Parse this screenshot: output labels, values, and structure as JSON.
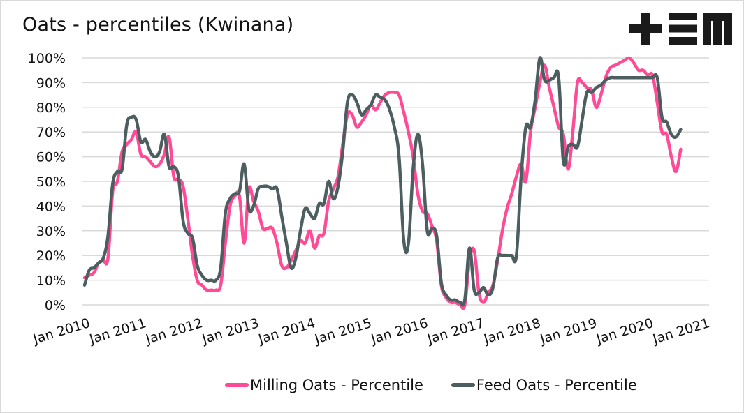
{
  "logo": {
    "name": "+EM logo",
    "color": "#1a1a1a"
  },
  "chart_data": {
    "type": "line",
    "title": "Oats - percentiles (Kwinana)",
    "xlabel": "",
    "ylabel": "",
    "ylim": [
      0,
      100
    ],
    "y_ticks": [
      "0%",
      "10%",
      "20%",
      "30%",
      "40%",
      "50%",
      "60%",
      "70%",
      "80%",
      "90%",
      "100%"
    ],
    "y_tick_values": [
      0,
      10,
      20,
      30,
      40,
      50,
      60,
      70,
      80,
      90,
      100
    ],
    "x_tick_labels": [
      "Jan 2010",
      "Jan 2011",
      "Jan 2012",
      "Jan 2013",
      "Jan 2014",
      "Jan 2015",
      "Jan 2016",
      "Jan 2017",
      "Jan 2018",
      "Jan 2019",
      "Jan 2020",
      "Jan 2021"
    ],
    "x_start": "Jan 2010",
    "x_frequency": "monthly",
    "grid": true,
    "legend_position": "bottom",
    "series": [
      {
        "name": "Milling Oats - Percentile",
        "color": "#ff4b96",
        "values": [
          11,
          12,
          13,
          17,
          18,
          19,
          46,
          50,
          62,
          65,
          67,
          70,
          61,
          60,
          58,
          56,
          57,
          61,
          68,
          52,
          51,
          48,
          35,
          20,
          10,
          8,
          6,
          6,
          6,
          8,
          25,
          40,
          44,
          44,
          25,
          47,
          42,
          38,
          31,
          31,
          31,
          25,
          16,
          15,
          18,
          22,
          26,
          25,
          30,
          23,
          28,
          29,
          42,
          47,
          52,
          65,
          77,
          77,
          72,
          74,
          77,
          81,
          79,
          82,
          85,
          86,
          86,
          85,
          78,
          70,
          60,
          45,
          38,
          37,
          32,
          26,
          8,
          3,
          1,
          1,
          0,
          0,
          18,
          22,
          5,
          1,
          5,
          8,
          18,
          30,
          39,
          45,
          52,
          57,
          50,
          70,
          80,
          90,
          97,
          88,
          80,
          72,
          69,
          55,
          70,
          90,
          90,
          88,
          87,
          80,
          85,
          92,
          96,
          97,
          98,
          99,
          100,
          98,
          95,
          95,
          93,
          93,
          82,
          70,
          69,
          60,
          54,
          63
        ]
      },
      {
        "name": "Feed Oats - Percentile",
        "color": "#4d5e60",
        "values": [
          8,
          14,
          15,
          17,
          19,
          28,
          49,
          54,
          55,
          73,
          76,
          75,
          66,
          67,
          62,
          60,
          62,
          69,
          56,
          56,
          52,
          34,
          29,
          27,
          16,
          12,
          10,
          10,
          10,
          15,
          37,
          43,
          45,
          46,
          57,
          39,
          40,
          47,
          48,
          48,
          47,
          47,
          36,
          25,
          15,
          19,
          30,
          39,
          37,
          35,
          41,
          41,
          50,
          43,
          48,
          62,
          82,
          85,
          82,
          77,
          79,
          81,
          85,
          84,
          83,
          79,
          72,
          60,
          26,
          25,
          55,
          69,
          57,
          30,
          31,
          28,
          9,
          4,
          2,
          2,
          1,
          2,
          23,
          6,
          5,
          7,
          4,
          7,
          19,
          20,
          20,
          20,
          20,
          52,
          72,
          72,
          83,
          100,
          91,
          91,
          92,
          92,
          58,
          64,
          65,
          64,
          75,
          86,
          86,
          88,
          89,
          91,
          92,
          92,
          92,
          92,
          92,
          92,
          92,
          92,
          92,
          92,
          92,
          76,
          74,
          69,
          68,
          71
        ]
      }
    ]
  }
}
